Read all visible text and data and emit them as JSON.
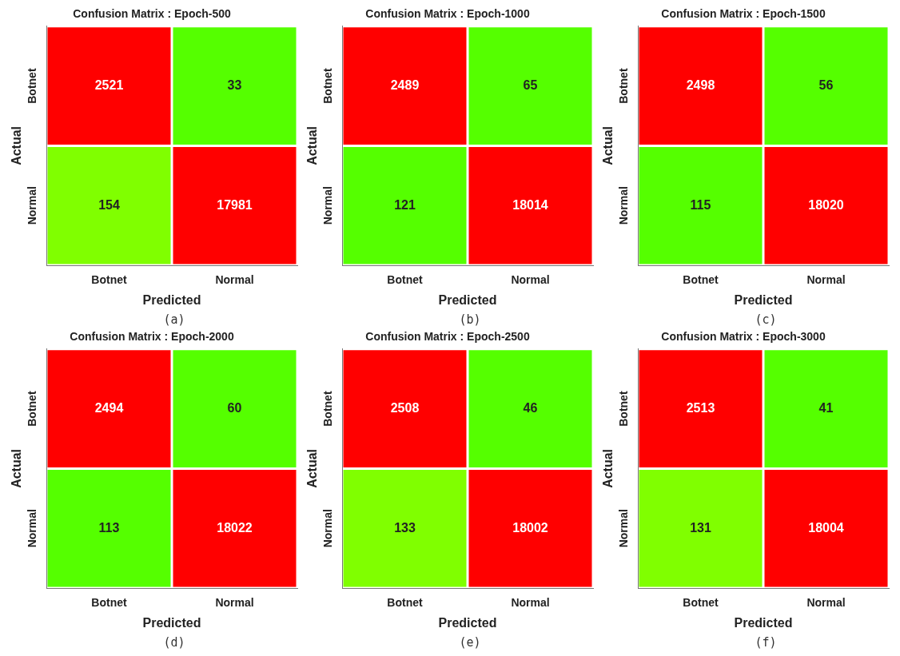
{
  "chart_data": [
    {
      "type": "heatmap",
      "title": "Confusion Matrix : Epoch-500",
      "xlabel": "Predicted",
      "ylabel": "Actual",
      "categories": [
        "Botnet",
        "Normal"
      ],
      "y_categories": [
        "Botnet",
        "Normal"
      ],
      "cells": [
        [
          2521,
          33
        ],
        [
          154,
          17981
        ]
      ],
      "colors": [
        [
          "#ff0000",
          "#55ff00"
        ],
        [
          "#80ff00",
          "#ff0000"
        ]
      ],
      "data_labels": true,
      "annotations": [
        "(a)"
      ]
    },
    {
      "type": "heatmap",
      "title": "Confusion Matrix : Epoch-1000",
      "xlabel": "Predicted",
      "ylabel": "Actual",
      "categories": [
        "Botnet",
        "Normal"
      ],
      "y_categories": [
        "Botnet",
        "Normal"
      ],
      "cells": [
        [
          2489,
          65
        ],
        [
          121,
          18014
        ]
      ],
      "colors": [
        [
          "#ff0000",
          "#55ff00"
        ],
        [
          "#55ff00",
          "#ff0000"
        ]
      ],
      "data_labels": true,
      "annotations": [
        "(b)"
      ]
    },
    {
      "type": "heatmap",
      "title": "Confusion Matrix : Epoch-1500",
      "xlabel": "Predicted",
      "ylabel": "Actual",
      "categories": [
        "Botnet",
        "Normal"
      ],
      "y_categories": [
        "Botnet",
        "Normal"
      ],
      "cells": [
        [
          2498,
          56
        ],
        [
          115,
          18020
        ]
      ],
      "colors": [
        [
          "#ff0000",
          "#55ff00"
        ],
        [
          "#55ff00",
          "#ff0000"
        ]
      ],
      "data_labels": true,
      "annotations": [
        "(c)"
      ]
    },
    {
      "type": "heatmap",
      "title": "Confusion Matrix : Epoch-2000",
      "xlabel": "Predicted",
      "ylabel": "Actual",
      "categories": [
        "Botnet",
        "Normal"
      ],
      "y_categories": [
        "Botnet",
        "Normal"
      ],
      "cells": [
        [
          2494,
          60
        ],
        [
          113,
          18022
        ]
      ],
      "colors": [
        [
          "#ff0000",
          "#55ff00"
        ],
        [
          "#55ff00",
          "#ff0000"
        ]
      ],
      "data_labels": true,
      "annotations": [
        "(d)"
      ]
    },
    {
      "type": "heatmap",
      "title": "Confusion Matrix : Epoch-2500",
      "xlabel": "Predicted",
      "ylabel": "Actual",
      "categories": [
        "Botnet",
        "Normal"
      ],
      "y_categories": [
        "Botnet",
        "Normal"
      ],
      "cells": [
        [
          2508,
          46
        ],
        [
          133,
          18002
        ]
      ],
      "colors": [
        [
          "#ff0000",
          "#55ff00"
        ],
        [
          "#80ff00",
          "#ff0000"
        ]
      ],
      "data_labels": true,
      "annotations": [
        "(e)"
      ]
    },
    {
      "type": "heatmap",
      "title": "Confusion Matrix : Epoch-3000",
      "xlabel": "Predicted",
      "ylabel": "Actual",
      "categories": [
        "Botnet",
        "Normal"
      ],
      "y_categories": [
        "Botnet",
        "Normal"
      ],
      "cells": [
        [
          2513,
          41
        ],
        [
          131,
          18004
        ]
      ],
      "colors": [
        [
          "#ff0000",
          "#55ff00"
        ],
        [
          "#80ff00",
          "#ff0000"
        ]
      ],
      "data_labels": true,
      "annotations": [
        "(f)"
      ]
    }
  ]
}
